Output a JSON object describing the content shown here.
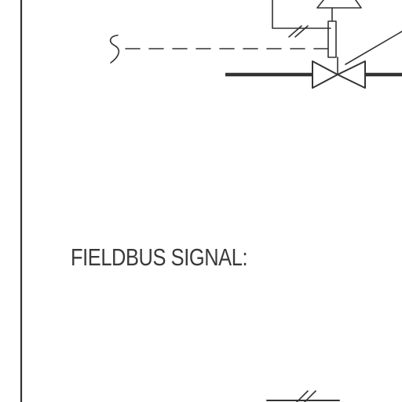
{
  "diagram": {
    "signal_label": "FIELDBUS SIGNAL:",
    "line_color": "#333333"
  }
}
